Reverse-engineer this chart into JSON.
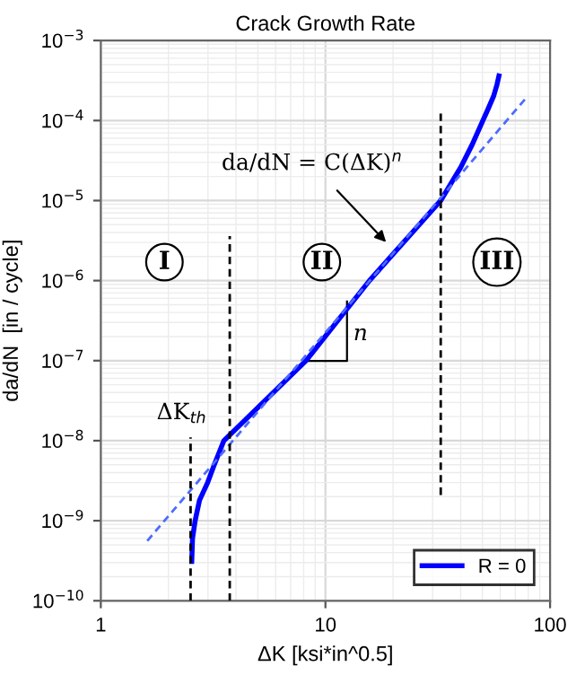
{
  "chart_data": {
    "type": "line",
    "title": "Crack Growth Rate",
    "xlabel": "ΔK [ksi*in^0.5]",
    "ylabel": "da/dN  [in / cycle]",
    "log": "xy",
    "xlim": [
      1,
      100
    ],
    "xticks": [
      1,
      10,
      100
    ],
    "ylim": [
      1e-10,
      0.001
    ],
    "yticks": [
      {
        "value": 1e-10,
        "label": "10$^{−10}$"
      },
      {
        "value": 1e-09,
        "label": "10$^{−9}$"
      },
      {
        "value": 1e-08,
        "label": "10$^{−8}$"
      },
      {
        "value": 1e-07,
        "label": "10$^{−7}$"
      },
      {
        "value": 1e-06,
        "label": "10$^{−6}$"
      },
      {
        "value": 1e-05,
        "label": "10$^{−5}$"
      },
      {
        "value": 0.0001,
        "label": "10$^{−4}$"
      },
      {
        "value": 0.001,
        "label": "10$^{−3}$"
      }
    ],
    "grid": true,
    "legend": "bottom right",
    "marker": "none",
    "series": [
      {
        "name": "R = 0",
        "color": "#0000ff",
        "line_style": "solid",
        "x": [
          2.54,
          2.56,
          2.63,
          2.75,
          2.99,
          3.2,
          3.53,
          8.2,
          15.7,
          32.6,
          40,
          45,
          50.2,
          53,
          56,
          58,
          59.2
        ],
        "values": [
          3.1e-10,
          6e-10,
          1e-09,
          1.8e-09,
          3e-09,
          5e-09,
          1e-08,
          1e-07,
          1e-06,
          1e-05,
          2.6e-05,
          5e-05,
          0.0001,
          0.00014,
          0.0002,
          0.00028,
          0.00036
        ]
      },
      {
        "color": "#4d6bff",
        "line_style": "dashed",
        "x": [
          1.61,
          78
        ],
        "values": [
          5.6e-10,
          0.00019
        ]
      },
      {
        "color": "#000000",
        "line_style": "dashed",
        "x": [
          2.51,
          2.51
        ],
        "values": [
          1e-10,
          1.1e-08
        ]
      },
      {
        "color": "#000000",
        "line_style": "dashed",
        "x": [
          3.75,
          3.75
        ],
        "values": [
          1e-10,
          3.6e-06
        ]
      },
      {
        "color": "#000000",
        "line_style": "dashed",
        "x": [
          32.6,
          32.6
        ],
        "values": [
          2.1e-09,
          0.00013
        ]
      }
    ],
    "annotations": [
      "da/dN = C(ΔK)$^{n}$",
      "ΔK$_{th}$",
      "n",
      {
        "text": "I",
        "x": 1.92,
        "y": 1.7e-06
      },
      {
        "text": "II",
        "x": 9.64,
        "y": 1.7e-06
      },
      {
        "text": "III",
        "x": 58,
        "y": 1.7e-06
      }
    ]
  }
}
